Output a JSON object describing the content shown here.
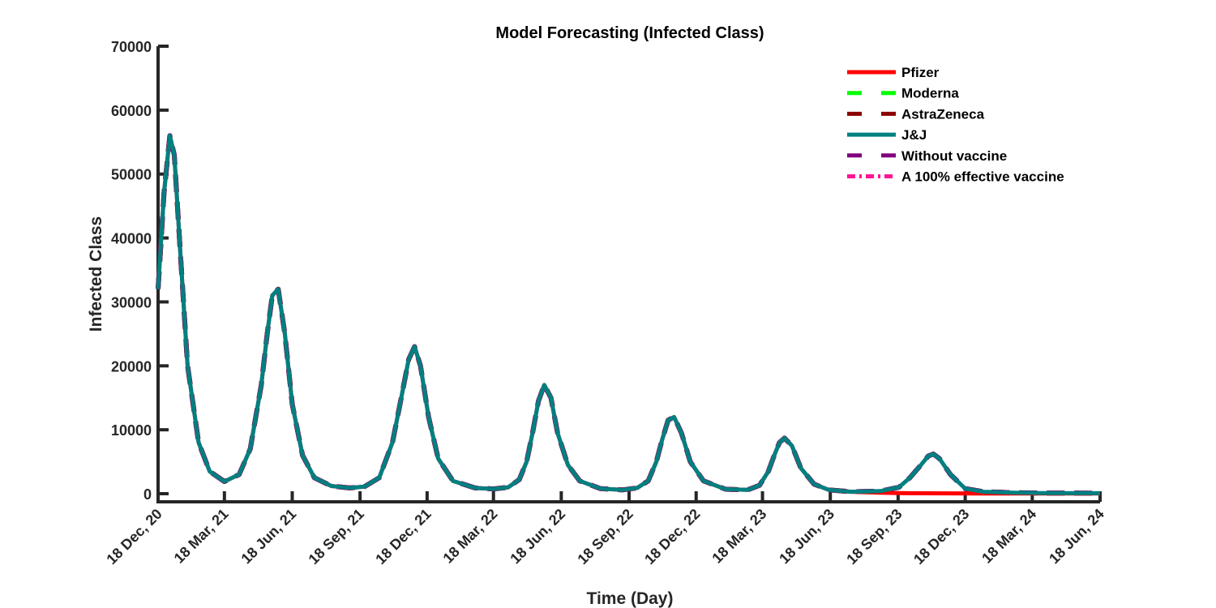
{
  "chart_data": {
    "type": "line",
    "title": "Model Forecasting (Infected Class)",
    "xlabel": "Time (Day)",
    "ylabel": "Infected Class",
    "ylim": [
      0,
      70000
    ],
    "yticks": [
      0,
      10000,
      20000,
      30000,
      40000,
      50000,
      60000,
      70000
    ],
    "xlim": [
      0,
      1278
    ],
    "xticks": [
      {
        "day": 0,
        "label": "18 Dec, 20"
      },
      {
        "day": 90,
        "label": "18 Mar, 21"
      },
      {
        "day": 182,
        "label": "18 Jun, 21"
      },
      {
        "day": 274,
        "label": "18 Sep, 21"
      },
      {
        "day": 365,
        "label": "18 Dec, 21"
      },
      {
        "day": 455,
        "label": "18 Mar, 22"
      },
      {
        "day": 547,
        "label": "18 Jun, 22"
      },
      {
        "day": 639,
        "label": "18 Sep, 22"
      },
      {
        "day": 730,
        "label": "18 Dec, 22"
      },
      {
        "day": 820,
        "label": "18 Mar, 23"
      },
      {
        "day": 912,
        "label": "18 Jun, 23"
      },
      {
        "day": 1004,
        "label": "18 Sep, 23"
      },
      {
        "day": 1095,
        "label": "18 Dec, 23"
      },
      {
        "day": 1186,
        "label": "18 Mar, 24"
      },
      {
        "day": 1278,
        "label": "18 Jun, 24"
      }
    ],
    "grid": false,
    "legend_position": "top-right",
    "series": [
      {
        "name": "Pfizer",
        "color": "#ff0000",
        "dash": "solid",
        "x": [
          0,
          8,
          16,
          22,
          30,
          40,
          55,
          70,
          90,
          110,
          125,
          140,
          148,
          155,
          163,
          172,
          182,
          196,
          212,
          235,
          260,
          280,
          300,
          318,
          330,
          340,
          348,
          356,
          367,
          380,
          400,
          430,
          455,
          475,
          490,
          500,
          508,
          516,
          524,
          533,
          542,
          556,
          572,
          600,
          630,
          650,
          665,
          676,
          684,
          692,
          700,
          710,
          722,
          740,
          770,
          800,
          816,
          828,
          836,
          843,
          850,
          860,
          872,
          890,
          910,
          940,
          980,
          1005,
          1015,
          1040,
          1080,
          1120,
          1200,
          1278
        ],
        "y": [
          32000,
          47000,
          56000,
          53000,
          38000,
          20000,
          8000,
          3500,
          1900,
          3000,
          7000,
          17000,
          25000,
          31000,
          32000,
          25000,
          14000,
          6000,
          2500,
          1200,
          900,
          1100,
          2500,
          8000,
          15000,
          21000,
          23000,
          20000,
          12000,
          5500,
          2000,
          900,
          750,
          1000,
          2200,
          5000,
          9500,
          14500,
          17000,
          15000,
          9500,
          4500,
          2000,
          800,
          600,
          900,
          2000,
          5000,
          8500,
          11500,
          12000,
          9500,
          5000,
          2000,
          700,
          600,
          1300,
          3500,
          6000,
          8000,
          8700,
          7500,
          4000,
          1500,
          600,
          300,
          150,
          100,
          80,
          60,
          50,
          40,
          30,
          20
        ]
      },
      {
        "name": "Moderna",
        "color": "#00ff00",
        "dash": "dashed",
        "x": [
          0,
          8,
          16,
          22,
          30,
          40,
          55,
          70,
          90,
          110,
          125,
          140,
          148,
          155,
          163,
          172,
          182,
          196,
          212,
          235,
          260,
          280,
          300,
          318,
          330,
          340,
          348,
          356,
          367,
          380,
          400,
          430,
          455,
          475,
          490,
          500,
          508,
          516,
          524,
          533,
          542,
          556,
          572,
          600,
          630,
          650,
          665,
          676,
          684,
          692,
          700,
          710,
          722,
          740,
          770,
          800,
          816,
          828,
          836,
          843,
          850,
          860,
          872,
          890,
          910,
          940,
          980,
          1005,
          1020,
          1035,
          1045,
          1052,
          1060,
          1075,
          1095,
          1120,
          1160,
          1200,
          1278
        ],
        "y": [
          32000,
          47000,
          56000,
          53000,
          38000,
          20000,
          8000,
          3500,
          1900,
          3000,
          7000,
          17000,
          25000,
          31000,
          32000,
          25000,
          14000,
          6000,
          2500,
          1200,
          900,
          1100,
          2500,
          8000,
          15000,
          21000,
          23000,
          20000,
          12000,
          5500,
          2000,
          900,
          750,
          1000,
          2200,
          5000,
          9500,
          14500,
          17000,
          15000,
          9500,
          4500,
          2000,
          800,
          600,
          900,
          2000,
          5000,
          8500,
          11500,
          12000,
          9500,
          5000,
          2000,
          700,
          600,
          1300,
          3500,
          6000,
          8000,
          8700,
          7500,
          4000,
          1500,
          600,
          300,
          400,
          1000,
          2500,
          4500,
          5900,
          6200,
          5500,
          3000,
          800,
          300,
          150,
          100,
          80
        ]
      },
      {
        "name": "AstraZeneca",
        "color": "#8b0000",
        "dash": "dashed",
        "x": [
          0,
          8,
          16,
          22,
          30,
          40,
          55,
          70,
          90,
          110,
          125,
          140,
          148,
          155,
          163,
          172,
          182,
          196,
          212,
          235,
          260,
          280,
          300,
          318,
          330,
          340,
          348,
          356,
          367,
          380,
          400,
          430,
          455,
          475,
          490,
          500,
          508,
          516,
          524,
          533,
          542,
          556,
          572,
          600,
          630,
          650,
          665,
          676,
          684,
          692,
          700,
          710,
          722,
          740,
          770,
          800,
          816,
          828,
          836,
          843,
          850,
          860,
          872,
          890,
          910,
          940,
          980,
          1005,
          1020,
          1035,
          1045,
          1052,
          1060,
          1075,
          1095,
          1120,
          1160,
          1200,
          1278
        ],
        "y": [
          32000,
          47000,
          56000,
          53000,
          38000,
          20000,
          8000,
          3500,
          1900,
          3000,
          7000,
          17000,
          25000,
          31000,
          32000,
          25000,
          14000,
          6000,
          2500,
          1200,
          900,
          1100,
          2500,
          8000,
          15000,
          21000,
          23000,
          20000,
          12000,
          5500,
          2000,
          900,
          750,
          1000,
          2200,
          5000,
          9500,
          14500,
          17000,
          15000,
          9500,
          4500,
          2000,
          800,
          600,
          900,
          2000,
          5000,
          8500,
          11500,
          12000,
          9500,
          5000,
          2000,
          700,
          600,
          1300,
          3500,
          6000,
          8000,
          8700,
          7500,
          4000,
          1500,
          600,
          300,
          400,
          1000,
          2500,
          4500,
          5900,
          6200,
          5500,
          3000,
          800,
          300,
          150,
          100,
          80
        ]
      },
      {
        "name": "J&J",
        "color": "#008080",
        "dash": "solid",
        "x": [
          0,
          8,
          16,
          22,
          30,
          40,
          55,
          70,
          90,
          110,
          125,
          140,
          148,
          155,
          163,
          172,
          182,
          196,
          212,
          235,
          260,
          280,
          300,
          318,
          330,
          340,
          348,
          356,
          367,
          380,
          400,
          430,
          455,
          475,
          490,
          500,
          508,
          516,
          524,
          533,
          542,
          556,
          572,
          600,
          630,
          650,
          665,
          676,
          684,
          692,
          700,
          710,
          722,
          740,
          770,
          800,
          816,
          828,
          836,
          843,
          850,
          860,
          872,
          890,
          910,
          940,
          980,
          1005,
          1020,
          1035,
          1045,
          1052,
          1060,
          1075,
          1095,
          1120,
          1160,
          1200,
          1278
        ],
        "y": [
          32000,
          47000,
          56000,
          53000,
          38000,
          20000,
          8000,
          3500,
          1900,
          3000,
          7000,
          17000,
          25000,
          31000,
          32000,
          25000,
          14000,
          6000,
          2500,
          1200,
          900,
          1100,
          2500,
          8000,
          15000,
          21000,
          23000,
          20000,
          12000,
          5500,
          2000,
          900,
          750,
          1000,
          2200,
          5000,
          9500,
          14500,
          17000,
          15000,
          9500,
          4500,
          2000,
          800,
          600,
          900,
          2000,
          5000,
          8500,
          11500,
          12000,
          9500,
          5000,
          2000,
          700,
          600,
          1300,
          3500,
          6000,
          8000,
          8700,
          7500,
          4000,
          1500,
          600,
          300,
          400,
          1000,
          2500,
          4500,
          5900,
          6200,
          5500,
          3000,
          800,
          300,
          150,
          100,
          80
        ]
      },
      {
        "name": "Without vaccine",
        "color": "#800080",
        "dash": "dashed",
        "x": [
          0,
          8,
          16,
          22,
          30,
          40,
          55,
          70,
          90,
          110,
          125,
          140,
          148,
          155,
          163,
          172,
          182,
          196,
          212,
          235,
          260,
          280,
          300,
          318,
          330,
          340,
          348,
          356,
          367,
          380,
          400,
          430,
          455,
          475,
          490,
          500,
          508,
          516,
          524,
          533,
          542,
          556,
          572,
          600,
          630,
          650,
          665,
          676,
          684,
          692,
          700,
          710,
          722,
          740,
          770,
          800,
          816,
          828,
          836,
          843,
          850,
          860,
          872,
          890,
          910,
          940,
          980,
          1005,
          1020,
          1035,
          1045,
          1052,
          1060,
          1075,
          1095,
          1120,
          1160,
          1200,
          1278
        ],
        "y": [
          32000,
          47000,
          56000,
          53000,
          38000,
          20000,
          8000,
          3500,
          1900,
          3000,
          7000,
          17000,
          25000,
          31000,
          32000,
          25000,
          14000,
          6000,
          2500,
          1200,
          900,
          1100,
          2500,
          8000,
          15000,
          21000,
          23000,
          20000,
          12000,
          5500,
          2000,
          900,
          750,
          1000,
          2200,
          5000,
          9500,
          14500,
          17000,
          15000,
          9500,
          4500,
          2000,
          800,
          600,
          900,
          2000,
          5000,
          8500,
          11500,
          12000,
          9500,
          5000,
          2000,
          700,
          600,
          1300,
          3500,
          6000,
          8000,
          8700,
          7500,
          4000,
          1500,
          600,
          300,
          400,
          1000,
          2500,
          4500,
          5900,
          6200,
          5500,
          3000,
          800,
          300,
          150,
          100,
          80
        ]
      },
      {
        "name": "A 100% effective vaccine",
        "color": "#ff1493",
        "dash": "dashdot",
        "x": [
          0,
          8,
          16,
          22,
          30,
          40,
          55,
          70,
          90,
          110,
          125,
          140,
          148,
          155,
          163,
          172,
          182,
          196,
          212,
          235,
          260,
          280,
          300,
          318,
          330,
          340,
          348,
          356,
          367,
          380,
          400,
          430,
          455,
          475,
          490,
          500,
          508,
          516,
          524,
          533,
          542,
          556,
          572,
          600,
          630,
          650,
          665,
          676,
          684,
          692,
          700,
          710,
          722,
          740,
          770,
          800,
          816,
          828,
          836,
          843,
          850,
          860,
          872,
          890,
          910,
          940,
          980,
          1005,
          1040,
          1080,
          1120,
          1200,
          1278
        ],
        "y": [
          32000,
          47000,
          56000,
          53000,
          38000,
          20000,
          8000,
          3500,
          1900,
          3000,
          7000,
          17000,
          25000,
          31000,
          32000,
          25000,
          14000,
          6000,
          2500,
          1200,
          900,
          1100,
          2500,
          8000,
          15000,
          21000,
          23000,
          20000,
          12000,
          5500,
          2000,
          900,
          750,
          1000,
          2200,
          5000,
          9500,
          14500,
          17000,
          15000,
          9500,
          4500,
          2000,
          800,
          600,
          900,
          2000,
          5000,
          8500,
          11500,
          12000,
          9500,
          5000,
          2000,
          700,
          600,
          1300,
          3500,
          6000,
          8000,
          8700,
          7500,
          4000,
          1500,
          600,
          300,
          150,
          100,
          70,
          50,
          40,
          30,
          20
        ]
      }
    ]
  }
}
